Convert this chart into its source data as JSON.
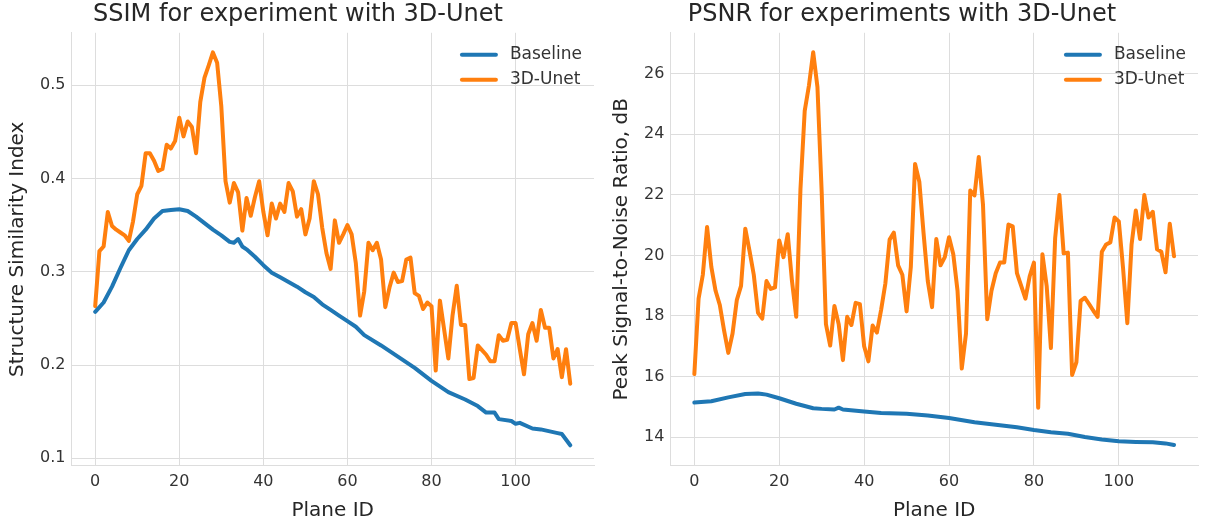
{
  "chart_data": [
    {
      "type": "line",
      "title": "SSIM for experiment with 3D-Unet",
      "xlabel": "Plane ID",
      "ylabel": "Structure Similarity Index",
      "xlim": [
        -5.65,
        118.65
      ],
      "ylim": [
        0.092,
        0.556
      ],
      "xticks": [
        0,
        20,
        40,
        60,
        80,
        100
      ],
      "yticks": [
        0.1,
        0.2,
        0.3,
        0.4,
        0.5
      ],
      "grid": true,
      "legend": "top right",
      "series": [
        {
          "name": "Baseline",
          "color": "#1f77b4",
          "x": [
            0,
            2,
            4,
            6,
            8,
            10,
            12,
            14,
            16,
            18,
            20,
            22,
            24,
            26,
            28,
            30,
            32,
            33,
            34,
            35,
            36,
            38,
            40,
            42,
            44,
            46,
            48,
            50,
            52,
            54,
            56,
            58,
            60,
            62,
            64,
            68,
            72,
            76,
            80,
            84,
            88,
            91,
            93,
            95,
            96,
            99,
            100,
            101,
            104,
            106,
            110,
            111,
            113
          ],
          "values": [
            0.257,
            0.267,
            0.284,
            0.304,
            0.323,
            0.335,
            0.345,
            0.357,
            0.365,
            0.366,
            0.367,
            0.365,
            0.359,
            0.352,
            0.345,
            0.339,
            0.332,
            0.331,
            0.335,
            0.327,
            0.324,
            0.316,
            0.307,
            0.299,
            0.294,
            0.289,
            0.284,
            0.278,
            0.273,
            0.265,
            0.259,
            0.253,
            0.247,
            0.241,
            0.232,
            0.221,
            0.209,
            0.197,
            0.183,
            0.171,
            0.163,
            0.156,
            0.149,
            0.149,
            0.142,
            0.14,
            0.137,
            0.138,
            0.132,
            0.131,
            0.127,
            0.126,
            0.114
          ]
        },
        {
          "name": "3D-Unet",
          "color": "#ff7f0e",
          "x": [
            0,
            1,
            2,
            3,
            4,
            5,
            6,
            7,
            8,
            9,
            10,
            11,
            12,
            13,
            14,
            15,
            16,
            17,
            18,
            19,
            20,
            21,
            22,
            23,
            24,
            25,
            26,
            27,
            28,
            29,
            30,
            31,
            32,
            33,
            34,
            35,
            36,
            37,
            38,
            39,
            40,
            41,
            42,
            43,
            44,
            45,
            46,
            47,
            48,
            49,
            50,
            51,
            52,
            53,
            54,
            55,
            56,
            57,
            58,
            59,
            60,
            61,
            62,
            63,
            64,
            65,
            66,
            67,
            68,
            69,
            70,
            71,
            72,
            73,
            74,
            75,
            76,
            77,
            78,
            79,
            80,
            81,
            82,
            83,
            84,
            85,
            86,
            87,
            88,
            89,
            90,
            91,
            92,
            93,
            94,
            95,
            96,
            97,
            98,
            99,
            100,
            101,
            102,
            103,
            104,
            105,
            106,
            107,
            108,
            109,
            110,
            111,
            112,
            113
          ],
          "values": [
            0.263,
            0.322,
            0.327,
            0.364,
            0.349,
            0.345,
            0.342,
            0.339,
            0.333,
            0.354,
            0.383,
            0.392,
            0.427,
            0.427,
            0.419,
            0.408,
            0.41,
            0.436,
            0.432,
            0.44,
            0.465,
            0.445,
            0.461,
            0.455,
            0.427,
            0.482,
            0.508,
            0.521,
            0.535,
            0.524,
            0.477,
            0.397,
            0.374,
            0.395,
            0.385,
            0.344,
            0.379,
            0.36,
            0.38,
            0.397,
            0.364,
            0.339,
            0.373,
            0.357,
            0.373,
            0.364,
            0.395,
            0.386,
            0.359,
            0.367,
            0.34,
            0.357,
            0.397,
            0.383,
            0.347,
            0.32,
            0.303,
            0.355,
            0.331,
            0.34,
            0.35,
            0.34,
            0.309,
            0.253,
            0.279,
            0.331,
            0.323,
            0.331,
            0.313,
            0.262,
            0.283,
            0.299,
            0.289,
            0.29,
            0.313,
            0.315,
            0.277,
            0.274,
            0.26,
            0.267,
            0.263,
            0.194,
            0.269,
            0.238,
            0.207,
            0.253,
            0.285,
            0.243,
            0.243,
            0.185,
            0.186,
            0.221,
            0.216,
            0.211,
            0.204,
            0.204,
            0.232,
            0.226,
            0.227,
            0.245,
            0.245,
            0.217,
            0.19,
            0.233,
            0.245,
            0.226,
            0.259,
            0.24,
            0.24,
            0.207,
            0.217,
            0.187,
            0.217,
            0.18
          ]
        }
      ]
    },
    {
      "type": "line",
      "title": "PSNR for experiments with 3D-Unet",
      "xlabel": "Plane ID",
      "ylabel": "Peak Signal-to-Noise Ratio, dB",
      "xlim": [
        -5.65,
        118.65
      ],
      "ylim": [
        13.05,
        27.35
      ],
      "xticks": [
        0,
        20,
        40,
        60,
        80,
        100
      ],
      "yticks": [
        14,
        16,
        18,
        20,
        22,
        24,
        26
      ],
      "grid": true,
      "legend": "top right",
      "series": [
        {
          "name": "Baseline",
          "color": "#1f77b4",
          "x": [
            0,
            4,
            8,
            12,
            15,
            17,
            20,
            24,
            28,
            30,
            33,
            34,
            35,
            40,
            44,
            50,
            55,
            60,
            66,
            72,
            76,
            80,
            84,
            88,
            92,
            96,
            100,
            104,
            108,
            111,
            113
          ],
          "values": [
            15.14,
            15.18,
            15.31,
            15.42,
            15.44,
            15.4,
            15.28,
            15.1,
            14.95,
            14.93,
            14.91,
            14.97,
            14.91,
            14.84,
            14.79,
            14.77,
            14.71,
            14.63,
            14.49,
            14.39,
            14.32,
            14.23,
            14.16,
            14.11,
            14.0,
            13.92,
            13.86,
            13.84,
            13.83,
            13.79,
            13.74
          ]
        },
        {
          "name": "3D-Unet",
          "color": "#ff7f0e",
          "x": [
            0,
            1,
            2,
            3,
            4,
            5,
            6,
            7,
            8,
            9,
            10,
            11,
            12,
            13,
            14,
            15,
            16,
            17,
            18,
            19,
            20,
            21,
            22,
            23,
            24,
            25,
            26,
            27,
            28,
            29,
            30,
            31,
            32,
            33,
            34,
            35,
            36,
            37,
            38,
            39,
            40,
            41,
            42,
            43,
            44,
            45,
            46,
            47,
            48,
            49,
            50,
            51,
            52,
            53,
            54,
            55,
            56,
            57,
            58,
            59,
            60,
            61,
            62,
            63,
            64,
            65,
            66,
            67,
            68,
            69,
            70,
            71,
            72,
            73,
            74,
            75,
            76,
            77,
            78,
            79,
            80,
            81,
            82,
            83,
            84,
            85,
            86,
            87,
            88,
            89,
            90,
            91,
            92,
            93,
            94,
            95,
            96,
            97,
            98,
            99,
            100,
            101,
            102,
            103,
            104,
            105,
            106,
            107,
            108,
            109,
            110,
            111,
            112,
            113
          ],
          "values": [
            16.08,
            18.57,
            19.36,
            20.94,
            19.62,
            18.83,
            18.36,
            17.52,
            16.78,
            17.42,
            18.52,
            18.99,
            20.88,
            20.15,
            19.36,
            18.1,
            17.91,
            19.15,
            18.89,
            18.94,
            20.49,
            19.94,
            20.7,
            19.15,
            17.97,
            22.19,
            24.77,
            25.61,
            26.71,
            25.56,
            22.09,
            17.73,
            17.02,
            18.33,
            17.73,
            16.54,
            17.97,
            17.7,
            18.43,
            18.39,
            17.0,
            16.5,
            17.68,
            17.45,
            18.2,
            19.07,
            20.52,
            20.75,
            19.67,
            19.36,
            18.15,
            19.62,
            23.02,
            22.43,
            20.73,
            19.15,
            18.29,
            20.54,
            19.67,
            19.94,
            20.6,
            20.04,
            18.83,
            16.26,
            17.42,
            22.14,
            21.98,
            23.25,
            21.67,
            17.89,
            18.83,
            19.41,
            19.76,
            19.76,
            21.02,
            20.96,
            19.41,
            18.99,
            18.57,
            19.31,
            19.76,
            14.97,
            20.04,
            18.99,
            16.94,
            20.57,
            21.99,
            20.07,
            20.09,
            16.05,
            16.47,
            18.5,
            18.6,
            18.39,
            18.17,
            17.97,
            20.12,
            20.36,
            20.43,
            21.25,
            21.12,
            19.57,
            17.76,
            20.36,
            21.48,
            20.54,
            21.99,
            21.25,
            21.44,
            20.2,
            20.12,
            19.44,
            21.04,
            19.97
          ]
        }
      ]
    }
  ]
}
